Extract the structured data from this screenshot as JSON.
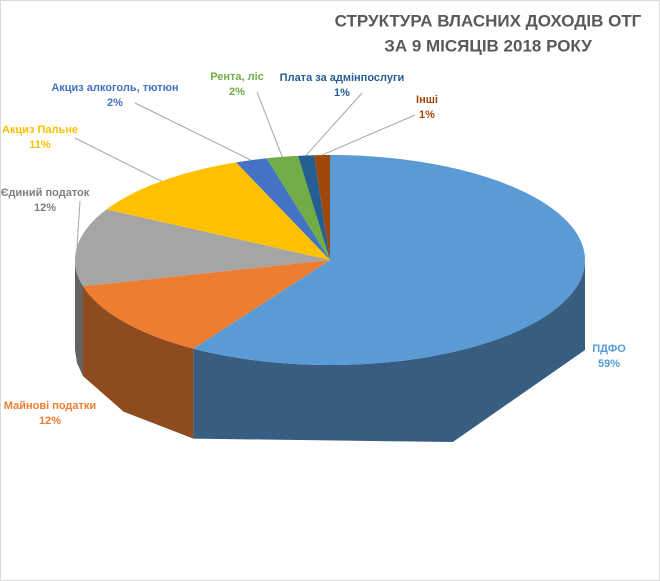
{
  "chart_data": {
    "type": "pie3d",
    "title": [
      "СТРУКТУРА ВЛАСНИХ ДОХОДІВ ОТГ",
      "ЗА 9 МІСЯЦІВ 2018 РОКУ"
    ],
    "categories": [
      "ПДФО",
      "Майнові податки",
      "Єдиний податок",
      "Акциз Пальне",
      "Акциз алкоголь, тютюн",
      "Рента, ліс",
      "Плата за адмінпослуги",
      "Інші"
    ],
    "values": [
      59,
      12,
      12,
      11,
      2,
      2,
      1,
      1
    ],
    "value_labels": [
      "59%",
      "12%",
      "12%",
      "11%",
      "2%",
      "2%",
      "1%",
      "1%"
    ],
    "colors": [
      "#5b9bd5",
      "#ed7d31",
      "#a5a5a5",
      "#ffc000",
      "#4472c4",
      "#70ad47",
      "#255e91",
      "#9e480e"
    ]
  }
}
